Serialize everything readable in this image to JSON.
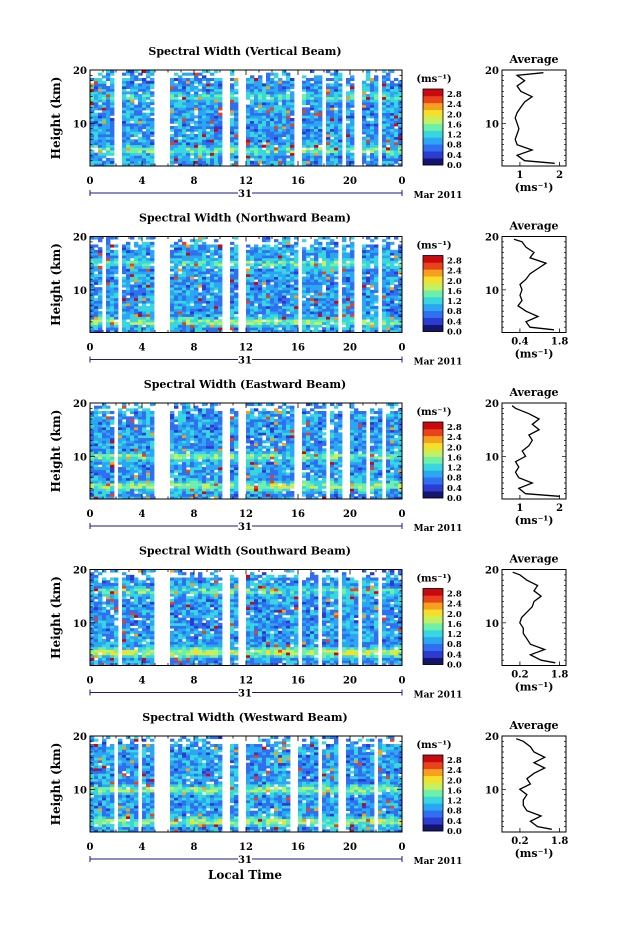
{
  "shared": {
    "time_ticks": [
      "0",
      "4",
      "8",
      "12",
      "16",
      "20",
      "0"
    ],
    "day_label": "31",
    "month_label": "Mar 2011",
    "xlabel": "Local Time",
    "ylabel": "Height (km)",
    "height_ticks": [
      "20",
      "10"
    ],
    "colorbar_unit_label": "(ms⁻¹)",
    "colorbar_ticks": [
      "2.8",
      "2.4",
      "2.0",
      "1.6",
      "1.2",
      "0.8",
      "0.4",
      "0.0"
    ],
    "average_title": "Average",
    "average_xlabel": "(ms⁻¹)",
    "palette": [
      "#14146e",
      "#2c3cd0",
      "#2f6ff0",
      "#2aa6f2",
      "#38d7e0",
      "#6ff0a8",
      "#c6f060",
      "#f4e02a",
      "#f7a020",
      "#e8431a",
      "#c80a10"
    ]
  },
  "chart_data": [
    {
      "type": "heatmap",
      "title": "Spectral Width (Vertical Beam)",
      "xlim": [
        0,
        24
      ],
      "ylim": [
        2,
        20
      ],
      "zlim": [
        0.0,
        3.0
      ],
      "x_unit": "hour (local time)",
      "y_unit": "km",
      "z_unit": "ms⁻¹",
      "gaps_hours": [
        [
          1.9,
          2.4
        ],
        [
          5.0,
          6.0
        ],
        [
          10.3,
          10.8
        ],
        [
          11.5,
          12.1
        ],
        [
          15.8,
          16.3
        ],
        [
          17.7,
          18.1
        ],
        [
          19.3,
          19.6
        ],
        [
          20.4,
          21.0
        ],
        [
          22.2,
          22.5
        ]
      ],
      "layer_bands": [
        {
          "height_km": 5.0,
          "value": 1.6
        },
        {
          "height_km": 15.0,
          "value": 1.4
        }
      ],
      "average_profile": {
        "xticks": [
          "1",
          "2"
        ],
        "xlim": [
          0.5,
          2.2
        ],
        "heights_km": [
          2.5,
          3,
          4,
          5,
          6,
          7,
          8,
          9,
          10,
          11,
          12,
          13,
          14,
          15,
          16,
          17,
          18,
          19,
          19.5
        ],
        "values": [
          1.9,
          1.1,
          0.9,
          1.3,
          0.9,
          0.85,
          0.9,
          0.95,
          0.9,
          0.85,
          0.9,
          1.0,
          1.1,
          1.3,
          1.0,
          0.9,
          1.1,
          0.9,
          1.6
        ]
      }
    },
    {
      "type": "heatmap",
      "title": "Spectral Width (Northward Beam)",
      "xlim": [
        0,
        24
      ],
      "ylim": [
        2,
        20
      ],
      "zlim": [
        0.0,
        3.0
      ],
      "x_unit": "hour (local time)",
      "y_unit": "km",
      "z_unit": "ms⁻¹",
      "gaps_hours": [
        [
          1.0,
          1.3
        ],
        [
          2.3,
          2.6
        ],
        [
          5.0,
          6.0
        ],
        [
          10.3,
          10.8
        ],
        [
          11.5,
          12.1
        ],
        [
          16.0,
          16.4
        ],
        [
          19.0,
          19.3
        ],
        [
          20.4,
          20.9
        ],
        [
          22.2,
          22.5
        ]
      ],
      "layer_bands": [
        {
          "height_km": 4.0,
          "value": 1.7
        },
        {
          "height_km": 15.0,
          "value": 1.5
        }
      ],
      "average_profile": {
        "xticks": [
          "0.4",
          "1.8"
        ],
        "xlim": [
          0.3,
          1.9
        ],
        "heights_km": [
          2.5,
          3,
          4,
          5,
          6,
          7,
          8,
          9,
          10,
          11,
          12,
          13,
          14,
          15,
          16,
          17,
          18,
          19,
          19.5
        ],
        "values": [
          1.6,
          1.0,
          0.9,
          1.2,
          0.9,
          0.7,
          0.8,
          0.75,
          0.8,
          0.75,
          0.9,
          1.0,
          1.2,
          1.4,
          1.0,
          1.1,
          0.9,
          0.8,
          0.6
        ]
      }
    },
    {
      "type": "heatmap",
      "title": "Spectral Width (Eastward Beam)",
      "xlim": [
        0,
        24
      ],
      "ylim": [
        2,
        20
      ],
      "zlim": [
        0.0,
        3.0
      ],
      "x_unit": "hour (local time)",
      "y_unit": "km",
      "z_unit": "ms⁻¹",
      "gaps_hours": [
        [
          1.9,
          2.3
        ],
        [
          5.0,
          6.0
        ],
        [
          10.3,
          10.8
        ],
        [
          11.5,
          12.1
        ],
        [
          15.8,
          16.3
        ],
        [
          18.3,
          18.6
        ],
        [
          19.5,
          20.0
        ],
        [
          21.2,
          21.5
        ],
        [
          22.6,
          22.9
        ]
      ],
      "layer_bands": [
        {
          "height_km": 4.5,
          "value": 1.8
        },
        {
          "height_km": 10.0,
          "value": 1.6
        }
      ],
      "average_profile": {
        "xticks": [
          "1",
          "2"
        ],
        "xlim": [
          0.5,
          2.4
        ],
        "heights_km": [
          2.5,
          3,
          4,
          5,
          6,
          7,
          8,
          9,
          10,
          11,
          12,
          13,
          14,
          15,
          16,
          17,
          18,
          19,
          19.5
        ],
        "values": [
          2.2,
          1.2,
          1.0,
          1.4,
          1.0,
          0.9,
          1.0,
          0.9,
          1.2,
          1.1,
          1.3,
          1.4,
          1.3,
          1.6,
          1.4,
          1.6,
          1.3,
          0.9,
          0.8
        ]
      }
    },
    {
      "type": "heatmap",
      "title": "Spectral Width (Southward Beam)",
      "xlim": [
        0,
        24
      ],
      "ylim": [
        2,
        20
      ],
      "zlim": [
        0.0,
        3.0
      ],
      "x_unit": "hour (local time)",
      "y_unit": "km",
      "z_unit": "ms⁻¹",
      "gaps_hours": [
        [
          2.3,
          2.6
        ],
        [
          5.0,
          6.0
        ],
        [
          10.3,
          10.8
        ],
        [
          11.5,
          12.1
        ],
        [
          16.0,
          16.4
        ],
        [
          17.4,
          17.8
        ],
        [
          19.0,
          19.3
        ],
        [
          20.5,
          21.0
        ],
        [
          22.3,
          22.6
        ]
      ],
      "layer_bands": [
        {
          "height_km": 4.5,
          "value": 2.0
        },
        {
          "height_km": 16.0,
          "value": 1.5
        }
      ],
      "average_profile": {
        "xticks": [
          "0.2",
          "1.8"
        ],
        "xlim": [
          0.1,
          1.9
        ],
        "heights_km": [
          2.5,
          3,
          4,
          5,
          6,
          7,
          8,
          9,
          10,
          11,
          12,
          13,
          14,
          15,
          16,
          17,
          18,
          19,
          19.5
        ],
        "values": [
          1.6,
          1.2,
          0.9,
          1.3,
          0.9,
          0.8,
          0.7,
          0.7,
          0.6,
          0.65,
          0.8,
          0.95,
          1.0,
          1.2,
          1.0,
          1.1,
          0.8,
          0.6,
          0.4
        ]
      }
    },
    {
      "type": "heatmap",
      "title": "Spectral Width (Westward Beam)",
      "xlim": [
        0,
        24
      ],
      "ylim": [
        2,
        20
      ],
      "zlim": [
        0.0,
        3.0
      ],
      "x_unit": "hour (local time)",
      "y_unit": "km",
      "z_unit": "ms⁻¹",
      "gaps_hours": [
        [
          2.0,
          2.3
        ],
        [
          3.7,
          3.9
        ],
        [
          5.0,
          6.0
        ],
        [
          10.3,
          10.8
        ],
        [
          11.5,
          12.1
        ],
        [
          15.5,
          15.9
        ],
        [
          17.4,
          17.7
        ],
        [
          19.2,
          19.6
        ],
        [
          22.0,
          22.3
        ]
      ],
      "layer_bands": [
        {
          "height_km": 4.0,
          "value": 1.8
        },
        {
          "height_km": 10.0,
          "value": 1.7
        }
      ],
      "average_profile": {
        "xticks": [
          "0.2",
          "1.8"
        ],
        "xlim": [
          0.1,
          1.9
        ],
        "heights_km": [
          2.5,
          3,
          4,
          5,
          6,
          7,
          8,
          9,
          10,
          11,
          12,
          13,
          14,
          15,
          16,
          17,
          18,
          19,
          19.5
        ],
        "values": [
          1.5,
          1.1,
          0.9,
          1.2,
          0.8,
          0.7,
          0.7,
          0.8,
          0.6,
          0.9,
          0.8,
          1.0,
          1.3,
          1.0,
          1.3,
          1.0,
          0.9,
          0.7,
          0.5
        ]
      }
    }
  ]
}
